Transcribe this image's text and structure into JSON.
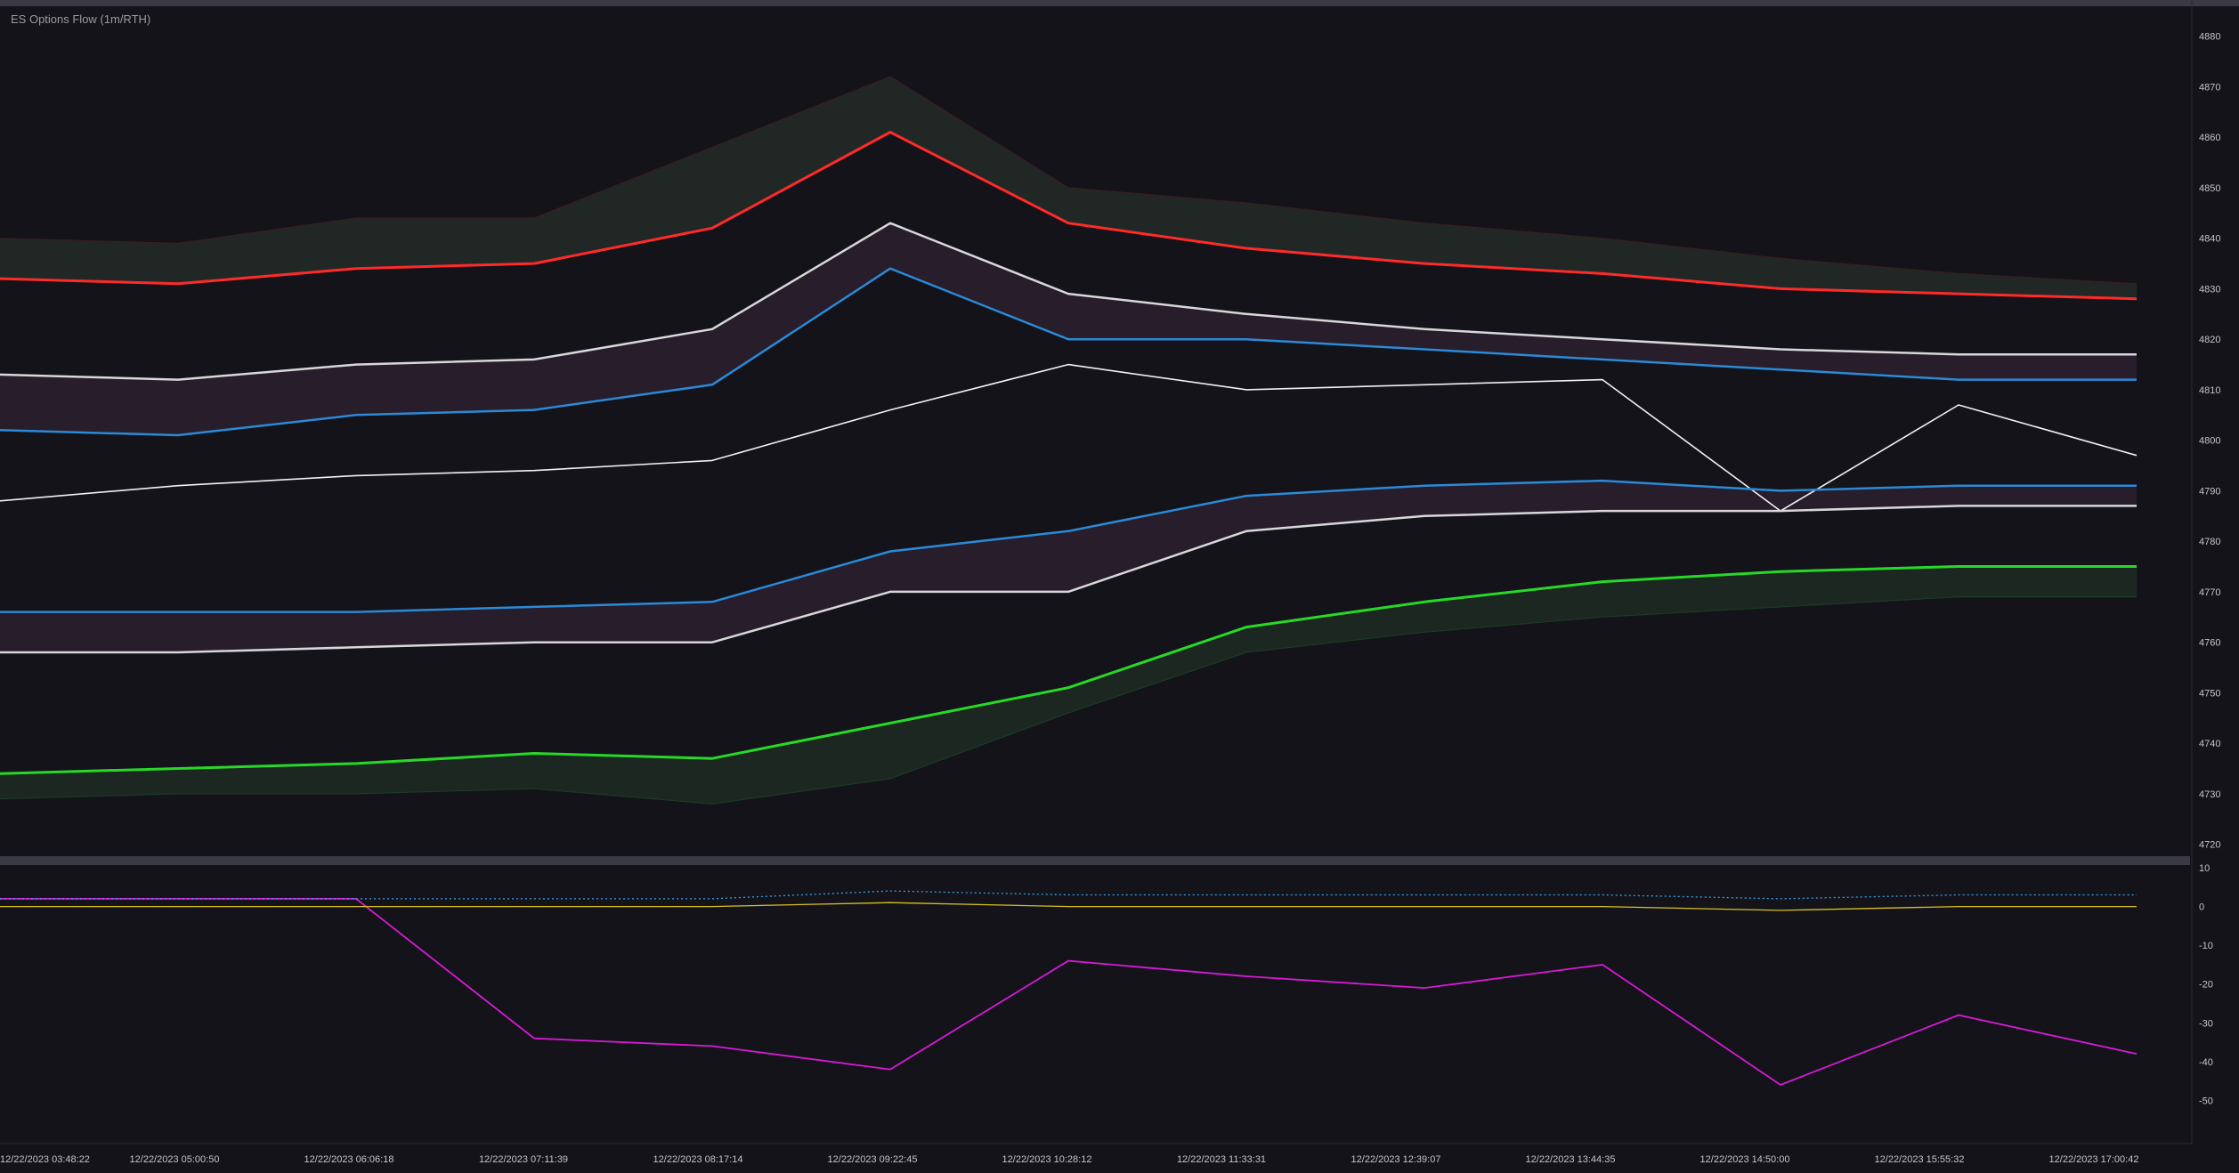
{
  "chart_data": [
    {
      "type": "line",
      "title": "ES Options Flow (1m/RTH)",
      "ylim": [
        4718,
        4884
      ],
      "y_ticks": [
        4720,
        4730,
        4740,
        4750,
        4760,
        4770,
        4780,
        4790,
        4800,
        4810,
        4820,
        4830,
        4840,
        4850,
        4860,
        4870,
        4880
      ],
      "x": [
        "12/22/2023 03:48:22",
        "12/22/2023 05:00:50",
        "12/22/2023 06:06:18",
        "12/22/2023 07:11:39",
        "12/22/2023 08:17:14",
        "12/22/2023 09:22:45",
        "12/22/2023 10:28:12",
        "12/22/2023 11:33:31",
        "12/22/2023 12:39:07",
        "12/22/2023 13:44:35",
        "12/22/2023 14:50:00",
        "12/22/2023 15:55:32",
        "12/22/2023 17:00:42"
      ],
      "grid": false,
      "series": [
        {
          "key": "price",
          "color": "#f2f2f2",
          "values": [
            4788,
            4791,
            4793,
            4794,
            4796,
            4806,
            4815,
            4810,
            4811,
            4812,
            4786,
            4807,
            4797
          ]
        },
        {
          "key": "red_upper",
          "color": "#3a1d22",
          "values": [
            4840,
            4839,
            4844,
            4844,
            4858,
            4872,
            4850,
            4847,
            4843,
            4840,
            4836,
            4833,
            4831
          ]
        },
        {
          "key": "red_line",
          "color": "#ff2a2a",
          "values": [
            4832,
            4831,
            4834,
            4835,
            4842,
            4861,
            4843,
            4838,
            4835,
            4833,
            4830,
            4829,
            4828
          ]
        },
        {
          "key": "white_upper",
          "color": "#d8d8d8",
          "values": [
            4813,
            4812,
            4815,
            4816,
            4822,
            4843,
            4829,
            4825,
            4822,
            4820,
            4818,
            4817,
            4817
          ]
        },
        {
          "key": "blue_upper",
          "color": "#2a8ad8",
          "values": [
            4802,
            4801,
            4805,
            4806,
            4811,
            4834,
            4820,
            4820,
            4818,
            4816,
            4814,
            4812,
            4812
          ]
        },
        {
          "key": "blue_lower",
          "color": "#2a8ad8",
          "values": [
            4766,
            4766,
            4766,
            4767,
            4768,
            4778,
            4782,
            4789,
            4791,
            4792,
            4790,
            4791,
            4791
          ]
        },
        {
          "key": "white_lower",
          "color": "#d8d8d8",
          "values": [
            4758,
            4758,
            4759,
            4760,
            4760,
            4770,
            4770,
            4782,
            4785,
            4786,
            4786,
            4787,
            4787
          ]
        },
        {
          "key": "green_line",
          "color": "#28d828",
          "values": [
            4734,
            4735,
            4736,
            4738,
            4737,
            4744,
            4751,
            4763,
            4768,
            4772,
            4774,
            4775,
            4775
          ]
        },
        {
          "key": "green_lower",
          "color": "#1a3a26",
          "values": [
            4729,
            4730,
            4730,
            4731,
            4728,
            4733,
            4746,
            4758,
            4762,
            4765,
            4767,
            4769,
            4769
          ]
        }
      ]
    },
    {
      "type": "line",
      "ylim": [
        -60,
        10
      ],
      "y_ticks": [
        10,
        0,
        -10,
        -20,
        -30,
        -40,
        -50
      ],
      "x": [
        "12/22/2023 03:48:22",
        "12/22/2023 05:00:50",
        "12/22/2023 06:06:18",
        "12/22/2023 07:11:39",
        "12/22/2023 08:17:14",
        "12/22/2023 09:22:45",
        "12/22/2023 10:28:12",
        "12/22/2023 11:33:31",
        "12/22/2023 12:39:07",
        "12/22/2023 13:44:35",
        "12/22/2023 14:50:00",
        "12/22/2023 15:55:32",
        "12/22/2023 17:00:42"
      ],
      "series": [
        {
          "key": "magenta",
          "color": "#d81ad8",
          "values": [
            2,
            2,
            2,
            -34,
            -36,
            -42,
            -14,
            -18,
            -21,
            -15,
            -46,
            -28,
            -38
          ]
        },
        {
          "key": "blue_dotted",
          "color": "#3aa0e8",
          "values": [
            2,
            2,
            2,
            2,
            2,
            4,
            3,
            3,
            3,
            3,
            2,
            3,
            3
          ]
        },
        {
          "key": "yellow",
          "color": "#d8c020",
          "values": [
            0,
            0,
            0,
            0,
            0,
            1,
            0,
            0,
            0,
            0,
            -1,
            0,
            0
          ]
        }
      ]
    }
  ]
}
